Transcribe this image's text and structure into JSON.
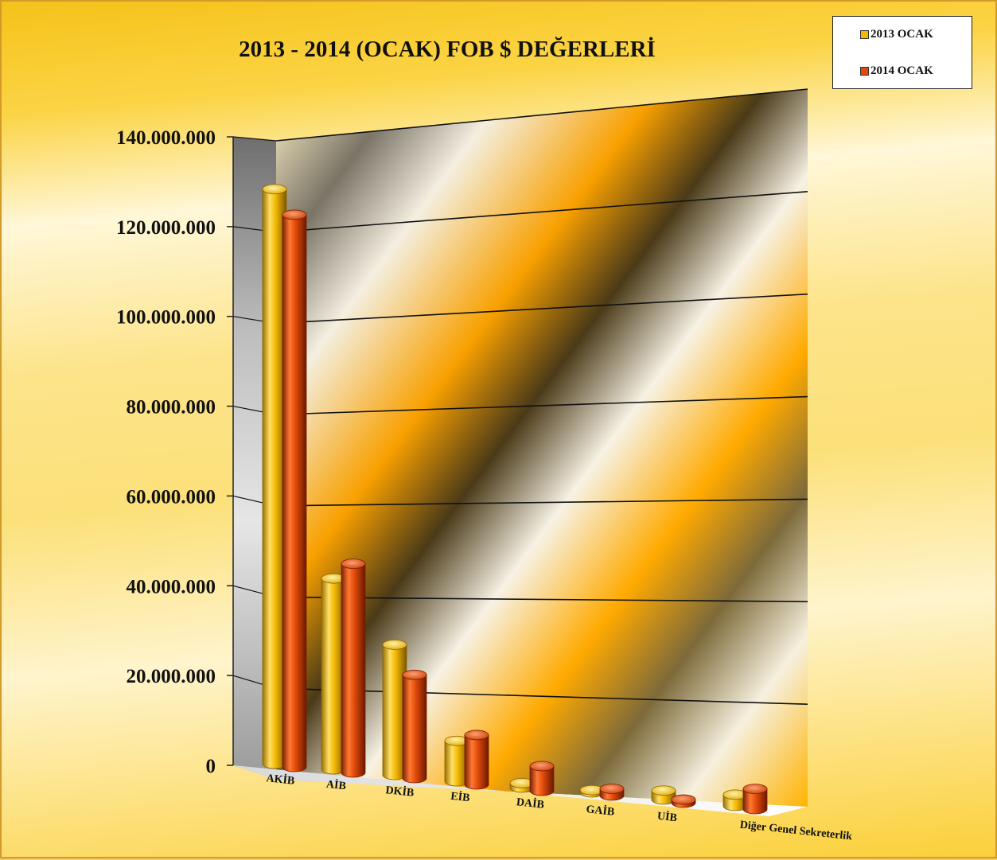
{
  "chart_data": {
    "type": "bar",
    "title": "2013 - 2014 (OCAK)  FOB $ DEĞERLERİ",
    "xlabel": "",
    "ylabel": "",
    "categories": [
      "AKİB",
      "AİB",
      "DKİB",
      "EİB",
      "DAİB",
      "GAİB",
      "UİB",
      "Diğer Genel Sekreterlik"
    ],
    "series": [
      {
        "name": "2013 OCAK",
        "color": "#f2b800",
        "values": [
          128000000,
          42500000,
          29000000,
          9000000,
          1000000,
          500000,
          2000000,
          2500000
        ]
      },
      {
        "name": "2014 OCAK",
        "color": "#e04a0a",
        "values": [
          123000000,
          46500000,
          23000000,
          11000000,
          5500000,
          1500000,
          700000,
          4500000
        ]
      }
    ],
    "ylim": [
      0,
      140000000
    ],
    "yticks": [
      0,
      20000000,
      40000000,
      60000000,
      80000000,
      100000000,
      120000000,
      140000000
    ],
    "ytick_labels": [
      "0",
      "20.000.000",
      "40.000.000",
      "60.000.000",
      "80.000.000",
      "100.000.000",
      "120.000.000",
      "140.000.000"
    ],
    "grid": true,
    "legend_position": "top-right"
  }
}
